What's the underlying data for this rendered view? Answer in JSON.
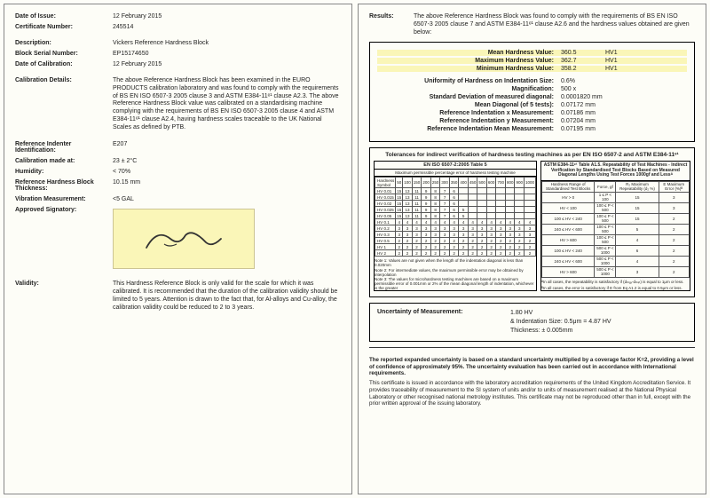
{
  "left": {
    "dateOfIssue": {
      "label": "Date of Issue:",
      "value": "12 February 2015"
    },
    "certNumber": {
      "label": "Certificate Number:",
      "value": "245514"
    },
    "description": {
      "label": "Description:",
      "value": "Vickers Reference Hardness Block"
    },
    "blockSerial": {
      "label": "Block Serial Number:",
      "value": "EP15174650"
    },
    "dateOfCal": {
      "label": "Date of Calibration:",
      "value": "12 February 2015"
    },
    "calDetails": {
      "label": "Calibration Details:",
      "value": "The above Reference Hardness Block has been examined in the EURO PRODUCTS calibration laboratory and was found to comply with the requirements of BS EN ISO 6507-3 2005 clause 3 and ASTM E384-11ᵉ¹ clause A2.3. The above Reference Hardness Block value was calibrated on a standardising machine complying with the requirements of BS EN ISO 6507-3 2005 clause 4 and ASTM E384-11ᵉ¹ clause A2.4, having hardness scales traceable to the UK National Scales as defined by PTB."
    },
    "refIndenter": {
      "label": "Reference Indenter Identification:",
      "value": "E207"
    },
    "calMadeAt": {
      "label": "Calibration made at:",
      "value": "23 ± 2°C"
    },
    "humidity": {
      "label": "Humidity:",
      "value": "< 70%"
    },
    "blockThick": {
      "label": "Reference Hardness Block Thickness:",
      "value": "10.15 mm"
    },
    "vibration": {
      "label": "Vibration Measurement:",
      "value": "<5 GAL"
    },
    "approvedSig": {
      "label": "Approved Signatory:"
    },
    "validity": {
      "label": "Validity:",
      "value": "This Hardness Reference Block is only valid for the scale for which it was calibrated. It is recommended that the duration of the calibration validity should be limited to 5 years. Attention is drawn to the fact that, for Al-alloys and Cu-alloy, the calibration validity could be reduced to 2 to 3 years."
    }
  },
  "right": {
    "resultsLabel": "Results:",
    "resultsText": "The above Reference Hardness Block was found to comply with the requirements of BS EN ISO 6507-3 2005 clause 7 and ASTM E384-11ᵉ¹ clause A2.6 and the hardness values obtained are given below:",
    "highlighted": [
      {
        "label": "Mean Hardness Value:",
        "value": "360.5",
        "unit": "HV1"
      },
      {
        "label": "Maximum Hardness Value:",
        "value": "362.7",
        "unit": "HV1"
      },
      {
        "label": "Minimum Hardness Value:",
        "value": "358.2",
        "unit": "HV1"
      }
    ],
    "measurements": [
      {
        "label": "Uniformity of Hardness on Indentation Size:",
        "value": "0.6%",
        "unit": ""
      },
      {
        "label": "Magnification:",
        "value": "500 x",
        "unit": ""
      },
      {
        "label": "Standard Deviation of measured diagonal:",
        "value": "0.0001820 mm",
        "unit": ""
      },
      {
        "label": "Mean Diagonal (of 5 tests):",
        "value": "0.07172 mm",
        "unit": ""
      },
      {
        "label": "Reference Indentation x Measurement:",
        "value": "0.07186 mm",
        "unit": ""
      },
      {
        "label": "Reference Indentation y Measurement:",
        "value": "0.07204 mm",
        "unit": ""
      },
      {
        "label": "Reference Indentation Mean Measurement:",
        "value": "0.07195 mm",
        "unit": ""
      }
    ],
    "tolTitle": "Tolerances for indirect verification of hardness testing machines as per EN ISO 6507-2 and ASTM E384-11ᵉ¹",
    "tolLeft": {
      "title": "EN ISO 6507-2:2005 Table 5",
      "subtitle": "Maximum permissible percentage error of hardness testing machine",
      "rowLabels": [
        "HV 0.01",
        "HV 0.015",
        "HV 0.02",
        "HV 0.025",
        "HV 0.05",
        "HV 0.1",
        "HV 0.2",
        "HV 0.3",
        "HV 0.5",
        "HV 1",
        "HV 2"
      ],
      "colHeaders": [
        "50",
        "100",
        "150",
        "200",
        "250",
        "300",
        "350",
        "400",
        "450",
        "500",
        "600",
        "700",
        "800",
        "900",
        "1000"
      ],
      "notes": "Note 1: Values are not given when the length of the indentation diagonal is less than 0.020mm\nNote 2: For intermediate values, the maximum permissible error may be obtained by interpolation\nNote 3: The values for microhardness testing machines are based on a maximum permissible error of 0.001mm or 2% of the mean diagonal length of indentation, whichever is the greater"
    },
    "tolRight": {
      "title": "ASTM E384-11ᵉ¹ Table A1.5. Repeatability of Test Machines - Indirect Verification by Standardised Test Blocks Based on Measured Diagonal Lengths Using Test Forces 1000gf and Lessᴬ",
      "col1": "Hardness Range of Standardised Test Blocks",
      "col2": "Force, gf",
      "col3": "R₂ Maximum Repeatability (d₂ %)",
      "col4": "E Maximum Error (%)ᴮ",
      "rows": [
        [
          "HV > 0",
          "1 ≤ P < 100",
          "15",
          "3"
        ],
        [
          "HV < 100",
          "100 ≤ P < 500",
          "15",
          "3"
        ],
        [
          "100 ≤ HV < 240",
          "100 ≤ P < 500",
          "15",
          "2"
        ],
        [
          "240 ≤ HV < 600",
          "100 ≤ P < 500",
          "5",
          "2"
        ],
        [
          "HV > 600",
          "100 ≤ P < 500",
          "4",
          "2"
        ],
        [
          "100 ≤ HV < 240",
          "500 ≤ P < 1000",
          "6",
          "2"
        ],
        [
          "240 ≤ HV < 600",
          "500 ≤ P < 1000",
          "4",
          "2"
        ],
        [
          "HV > 600",
          "500 ≤ P < 1000",
          "3",
          "2"
        ]
      ],
      "noteA": "ᴬIn all cases, the repeatability is satisfactory if (dₘₐₓ-dₘᵢₙ) is equal to 1μm or less.",
      "noteB": "ᴮIn all cases, the error is satisfactory if E from Eq A1.2 is equal to 0.5μm or less."
    },
    "uncert": {
      "label": "Uncertainty of Measurement:",
      "line1": "1.80 HV",
      "line2": "& Indentation Size: 0.5μm = 4.87 HV",
      "line3": "Thickness: ± 0.005mm"
    },
    "footerBold": "The reported expanded uncertainty is based on a standard uncertainty multiplied by a coverage factor K=2, providing a level of confidence of approximately 95%. The uncertainty evaluation has been carried out in accordance with International requirements.",
    "footerText": "This certificate is issued in accordance with the laboratory accreditation requirements of the United Kingdom Accreditation Service. It provides traceability of measurement to the SI system of units and/or to units of measurement realised at the National Physical Laboratory or other recognised national metrology institutes. This certificate may not be reproduced other than in full, except with the prior written approval of the issuing laboratory."
  },
  "colors": {
    "highlight": "#faf6b8",
    "border": "#000000",
    "background": "#fdfdf7"
  }
}
